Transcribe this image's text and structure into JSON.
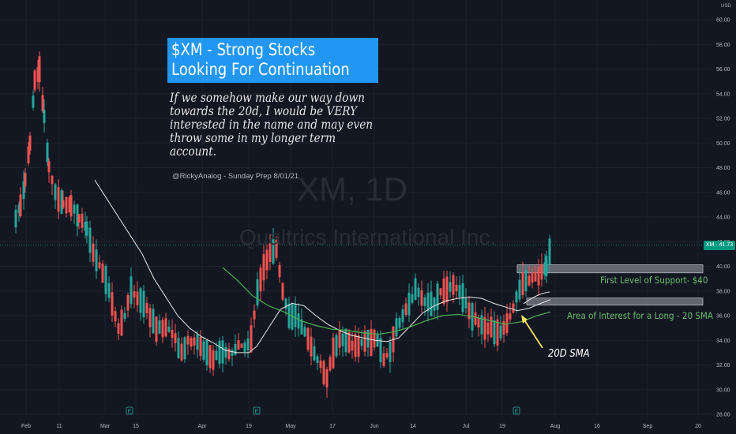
{
  "title": {
    "line1": "$XM - Strong Stocks",
    "line2": "Looking For Continuation"
  },
  "note": {
    "lines": [
      "If we somehow make our way down",
      "towards the 20d, I would be VERY",
      "interested in the name and may even",
      "throw some in my longer term",
      "account."
    ]
  },
  "credit": "@RickyAnalog - Sunday Prep 8/01/21",
  "watermark": {
    "symbol": "XM, 1D",
    "company": "Qualtrics International Inc."
  },
  "annotations": {
    "support": "First Level of Support- $40",
    "interest": "Area of Interest for a Long - 20 SMA",
    "sma": "20D SMA"
  },
  "axis": {
    "currency": "USD",
    "price_tag": "XM · 41.73",
    "y_ticks": [
      "60.00",
      "58.00",
      "56.00",
      "54.00",
      "52.00",
      "50.00",
      "48.00",
      "46.00",
      "44.00",
      "42.00",
      "40.00",
      "38.00",
      "36.00",
      "34.00",
      "32.00",
      "30.00",
      "28.00"
    ],
    "x_ticks": [
      "Feb",
      "11",
      "Mar",
      "15",
      "Apr",
      "19",
      "May",
      "17",
      "Jun",
      "14",
      "Jul",
      "19",
      "Aug",
      "16",
      "Sep",
      "20"
    ],
    "earnings_marker": "E"
  },
  "colors": {
    "background": "#131722",
    "up": "#26a69a",
    "down": "#ef5350",
    "sma20": "#4caf50",
    "sma_white": "#e6e6e6",
    "zone": "#787b86",
    "title_bg": "#2196f3",
    "arrow": "#f2e35e"
  },
  "chart_data": {
    "type": "candlestick",
    "ylim": [
      28,
      60
    ],
    "x_range": [
      "Jan 28, 2021",
      "Aug 28, 2021"
    ],
    "series": [
      {
        "name": "XM daily candles",
        "type": "candlestick",
        "last_price": 41.73
      },
      {
        "type": "line",
        "note": "long white moving average"
      },
      {
        "type": "line",
        "note": "20D SMA (green)"
      }
    ],
    "zones": [
      {
        "label": "First Level of Support- $40",
        "low": 39.6,
        "high": 40.0
      },
      {
        "label": "Area of Interest for a Long - 20 SMA",
        "low": 37.0,
        "high": 37.3
      }
    ],
    "earnings_dates": [
      "Mar 10, 2021",
      "Apr 27, 2021",
      "Jul 21, 2021"
    ]
  }
}
